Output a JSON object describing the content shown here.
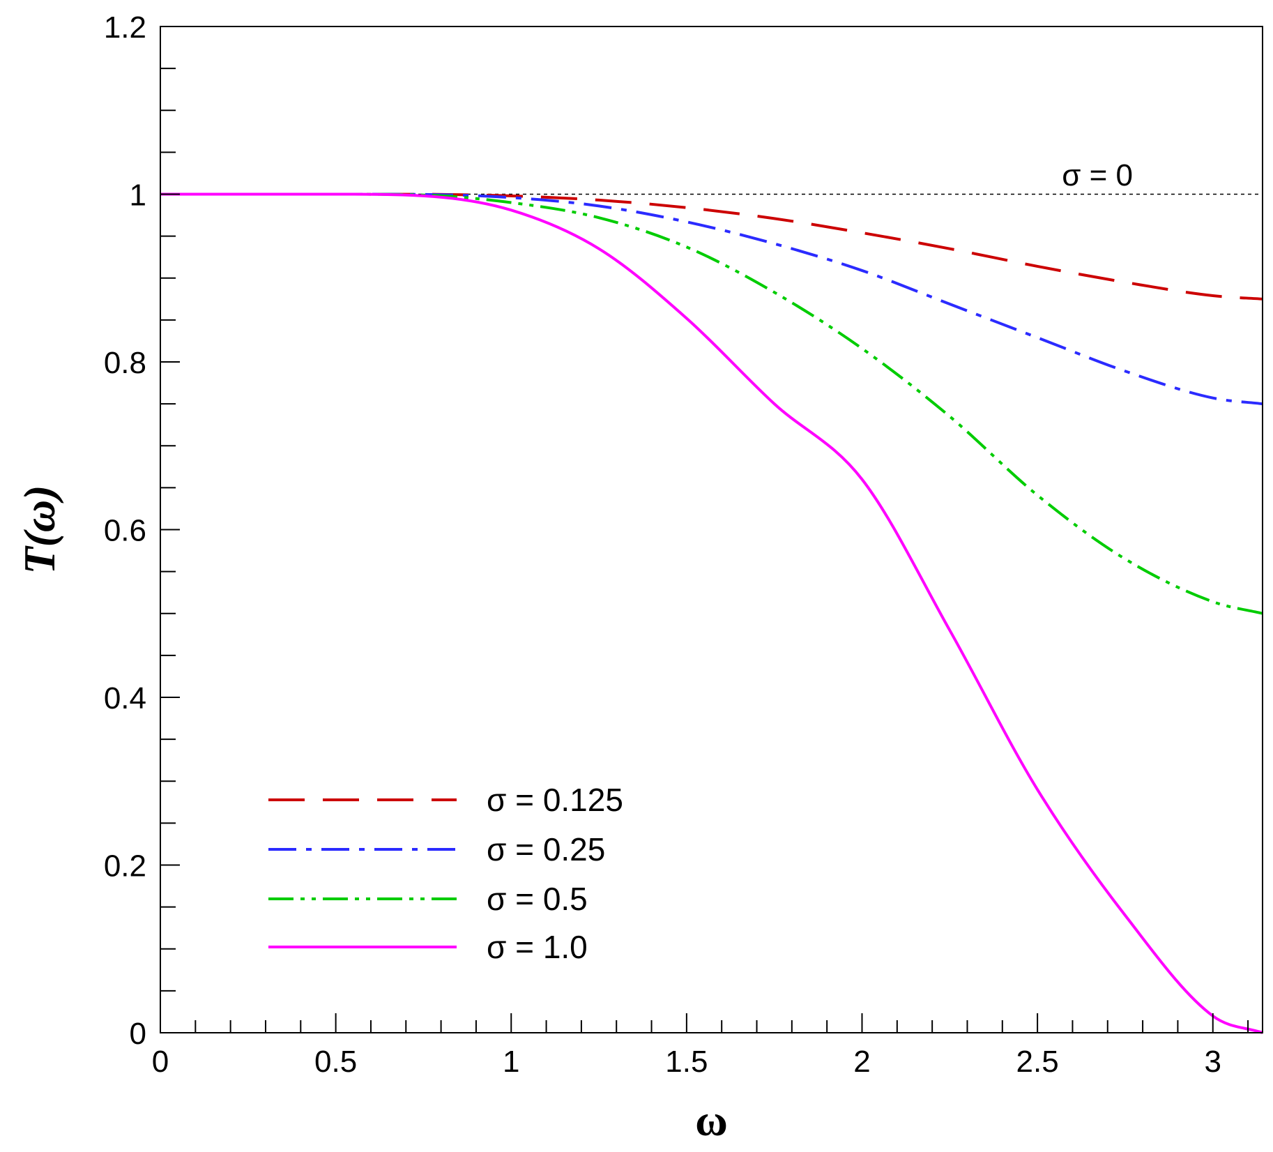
{
  "chart_data": {
    "type": "line",
    "title": "",
    "xlabel": "ω",
    "ylabel": "T(ω)",
    "xlim": [
      0,
      3.14159
    ],
    "ylim": [
      0,
      1.2
    ],
    "x_ticks": [
      "0",
      "0.5",
      "1",
      "1.5",
      "2",
      "2.5",
      "3"
    ],
    "y_ticks": [
      "0",
      "0.2",
      "0.4",
      "0.6",
      "0.8",
      "1",
      "1.2"
    ],
    "grid": false,
    "legend_position": "bottom-left",
    "annotation": "σ = 0",
    "reference_line": {
      "y": 1,
      "style": "dotted",
      "color": "#000000"
    },
    "series": [
      {
        "name": "σ = 0.125",
        "color": "#cc0000",
        "dash": "dashed",
        "x": [
          0,
          0.25,
          0.5,
          0.75,
          1.0,
          1.25,
          1.5,
          1.75,
          2.0,
          2.25,
          2.5,
          2.75,
          3.0,
          3.1416
        ],
        "y": [
          1.0,
          1.0,
          1.0,
          0.9999,
          0.998,
          0.993,
          0.984,
          0.971,
          0.954,
          0.935,
          0.914,
          0.895,
          0.879,
          0.875
        ]
      },
      {
        "name": "σ = 0.25",
        "color": "#2b2bff",
        "dash": "dash-dot",
        "x": [
          0,
          0.25,
          0.5,
          0.75,
          1.0,
          1.25,
          1.5,
          1.75,
          2.0,
          2.25,
          2.5,
          2.75,
          3.0,
          3.1416
        ],
        "y": [
          1.0,
          1.0,
          1.0,
          0.9997,
          0.996,
          0.986,
          0.967,
          0.941,
          0.909,
          0.869,
          0.829,
          0.789,
          0.757,
          0.75
        ]
      },
      {
        "name": "σ = 0.5",
        "color": "#00cc00",
        "dash": "dash-dot-dot",
        "x": [
          0,
          0.25,
          0.5,
          0.75,
          1.0,
          1.25,
          1.5,
          1.75,
          2.0,
          2.25,
          2.5,
          2.75,
          3.0,
          3.1416
        ],
        "y": [
          1.0,
          1.0,
          1.0,
          0.999,
          0.99,
          0.972,
          0.937,
          0.883,
          0.816,
          0.735,
          0.641,
          0.565,
          0.514,
          0.5
        ]
      },
      {
        "name": "σ = 1.0",
        "color": "#ff00ff",
        "dash": "solid",
        "x": [
          0,
          0.25,
          0.5,
          0.75,
          1.0,
          1.25,
          1.5,
          1.75,
          2.0,
          2.25,
          2.5,
          2.75,
          3.0,
          3.1416
        ],
        "y": [
          1.0,
          1.0,
          1.0,
          0.998,
          0.981,
          0.935,
          0.852,
          0.75,
          0.66,
          0.48,
          0.29,
          0.14,
          0.02,
          0.0
        ]
      }
    ]
  }
}
